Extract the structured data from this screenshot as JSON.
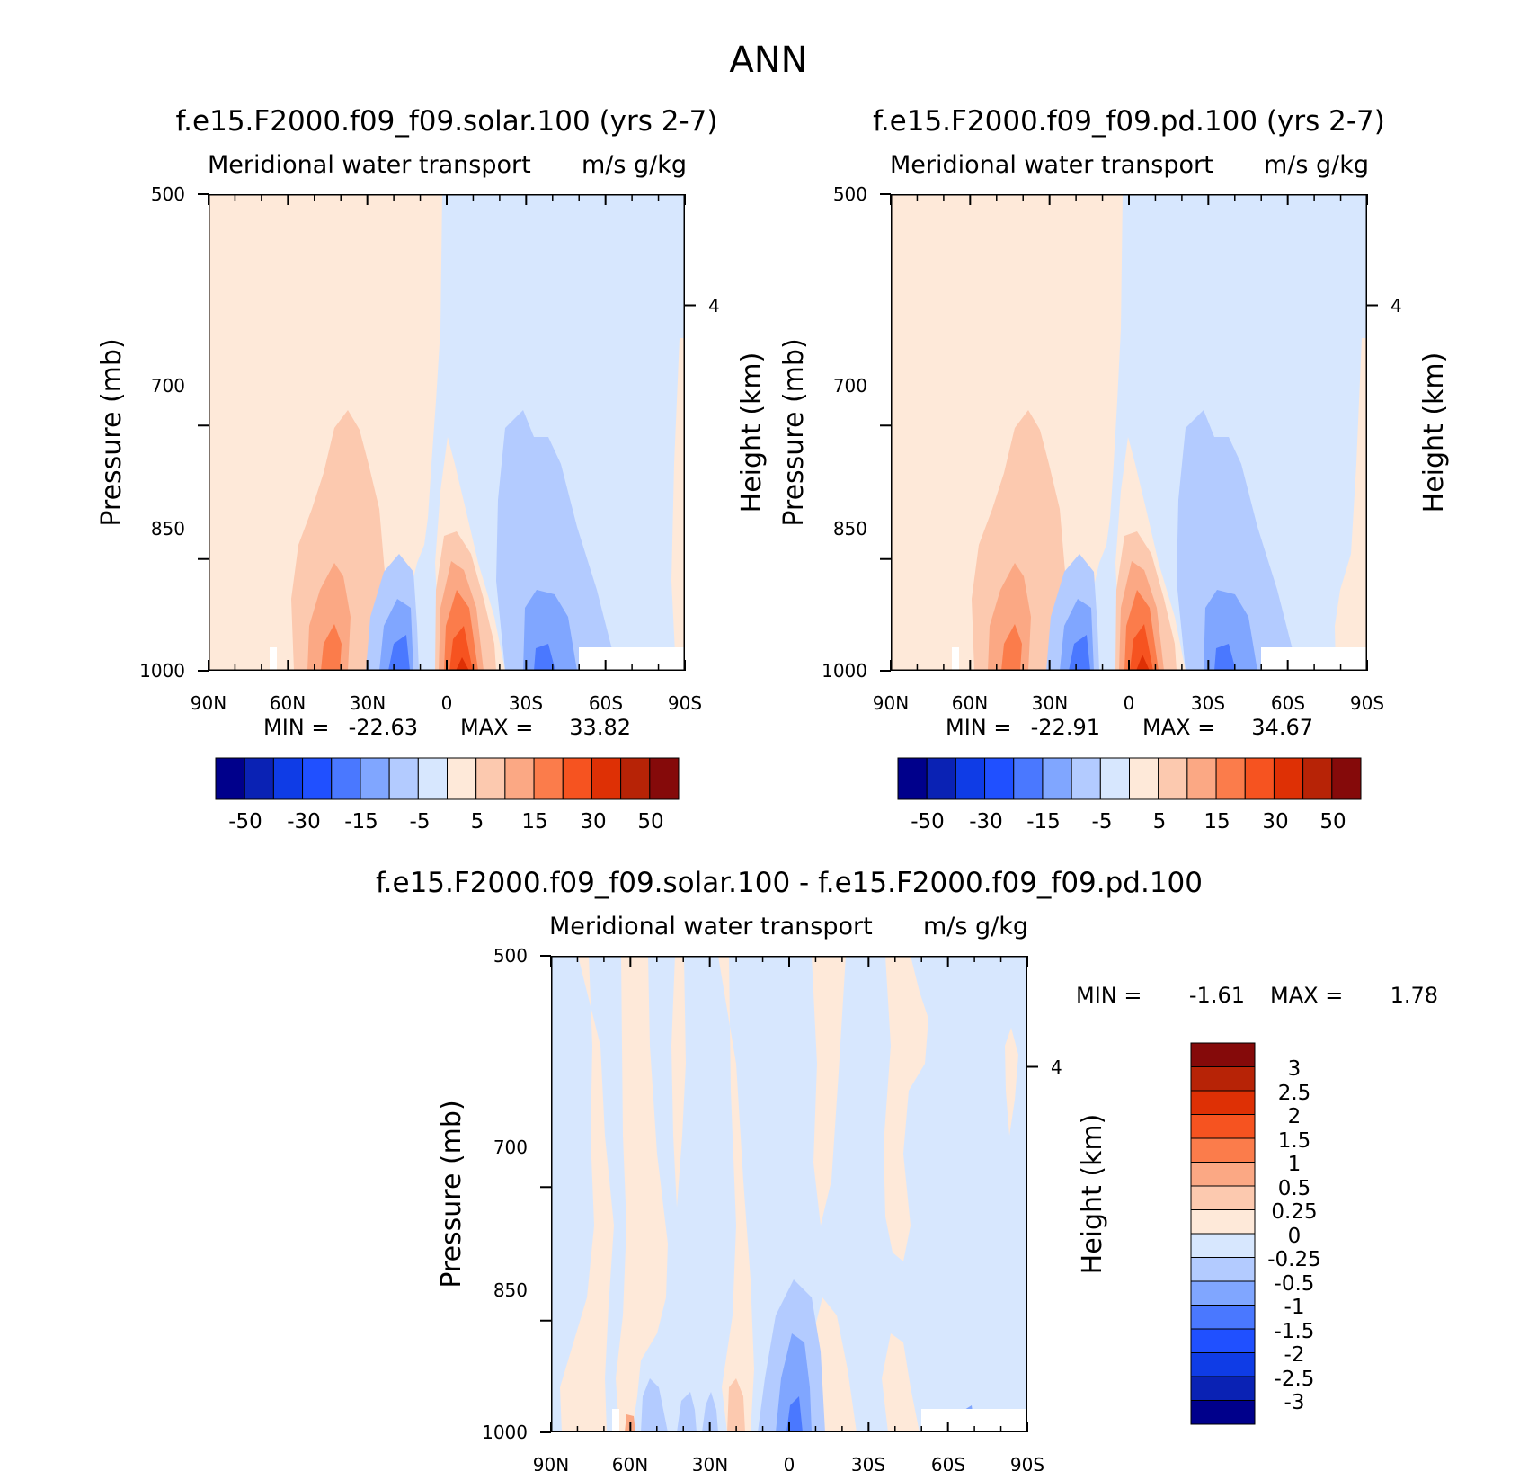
{
  "figure_title": "ANN",
  "chart_data": [
    {
      "type": "contour",
      "subtitle": "f.e15.F2000.f09_f09.solar.100 (yrs 2-7)",
      "left_title": "Meridional water transport",
      "right_title": "m/s g/kg",
      "xlabel": "",
      "ylabel": "Pressure (mb)",
      "y2label": "Height (km)",
      "x_ticks": [
        "90N",
        "60N",
        "30N",
        "0",
        "30S",
        "60S",
        "90S"
      ],
      "y_ticks": [
        "500",
        "700",
        "850",
        "1000"
      ],
      "y_tick_values": [
        500,
        700,
        850,
        1000
      ],
      "ylim": [
        500,
        1000
      ],
      "y2_ticks": [
        "4"
      ],
      "stats": {
        "min_label": "MIN =",
        "min_value": "-22.63",
        "max_label": "MAX =",
        "max_value": "33.82"
      },
      "colorbar_labels": [
        "-50",
        "-30",
        "-15",
        "-5",
        "5",
        "15",
        "30",
        "50"
      ],
      "colorbar_colors": [
        "#00008b",
        "#0a22b4",
        "#0f3ce6",
        "#2050ff",
        "#4a78ff",
        "#80a6ff",
        "#b3cbff",
        "#d7e7fe",
        "#fee9d9",
        "#fcc9af",
        "#fba884",
        "#fb7c4b",
        "#f65320",
        "#de3005",
        "#b72306",
        "#850a0a"
      ]
    },
    {
      "type": "contour",
      "subtitle": "f.e15.F2000.f09_f09.pd.100 (yrs 2-7)",
      "left_title": "Meridional water transport",
      "right_title": "m/s g/kg",
      "xlabel": "",
      "ylabel": "Pressure (mb)",
      "y2label": "Height (km)",
      "x_ticks": [
        "90N",
        "60N",
        "30N",
        "0",
        "30S",
        "60S",
        "90S"
      ],
      "y_ticks": [
        "500",
        "700",
        "850",
        "1000"
      ],
      "y_tick_values": [
        500,
        700,
        850,
        1000
      ],
      "ylim": [
        500,
        1000
      ],
      "y2_ticks": [
        "4"
      ],
      "stats": {
        "min_label": "MIN =",
        "min_value": "-22.91",
        "max_label": "MAX =",
        "max_value": "34.67"
      },
      "colorbar_labels": [
        "-50",
        "-30",
        "-15",
        "-5",
        "5",
        "15",
        "30",
        "50"
      ],
      "colorbar_colors": [
        "#00008b",
        "#0a22b4",
        "#0f3ce6",
        "#2050ff",
        "#4a78ff",
        "#80a6ff",
        "#b3cbff",
        "#d7e7fe",
        "#fee9d9",
        "#fcc9af",
        "#fba884",
        "#fb7c4b",
        "#f65320",
        "#de3005",
        "#b72306",
        "#850a0a"
      ]
    },
    {
      "type": "contour",
      "subtitle": "f.e15.F2000.f09_f09.solar.100 - f.e15.F2000.f09_f09.pd.100",
      "left_title": "Meridional water transport",
      "right_title": "m/s g/kg",
      "xlabel": "",
      "ylabel": "Pressure (mb)",
      "y2label": "Height (km)",
      "x_ticks": [
        "90N",
        "60N",
        "30N",
        "0",
        "30S",
        "60S",
        "90S"
      ],
      "y_ticks": [
        "500",
        "700",
        "850",
        "1000"
      ],
      "y_tick_values": [
        500,
        700,
        850,
        1000
      ],
      "ylim": [
        500,
        1000
      ],
      "y2_ticks": [
        "4"
      ],
      "stats": {
        "min_label": "MIN =",
        "min_value": "-1.61",
        "max_label": "MAX =",
        "max_value": "1.78"
      },
      "colorbar_labels": [
        "3",
        "2.5",
        "2",
        "1.5",
        "1",
        "0.5",
        "0.25",
        "0",
        "-0.25",
        "-0.5",
        "-1",
        "-1.5",
        "-2",
        "-2.5",
        "-3"
      ],
      "colorbar_colors": [
        "#850a0a",
        "#b72306",
        "#de3005",
        "#f65320",
        "#fb7c4b",
        "#fba884",
        "#fcc9af",
        "#fee9d9",
        "#d7e7fe",
        "#b3cbff",
        "#80a6ff",
        "#4a78ff",
        "#2050ff",
        "#0f3ce6",
        "#0a22b4",
        "#00008b"
      ]
    }
  ]
}
